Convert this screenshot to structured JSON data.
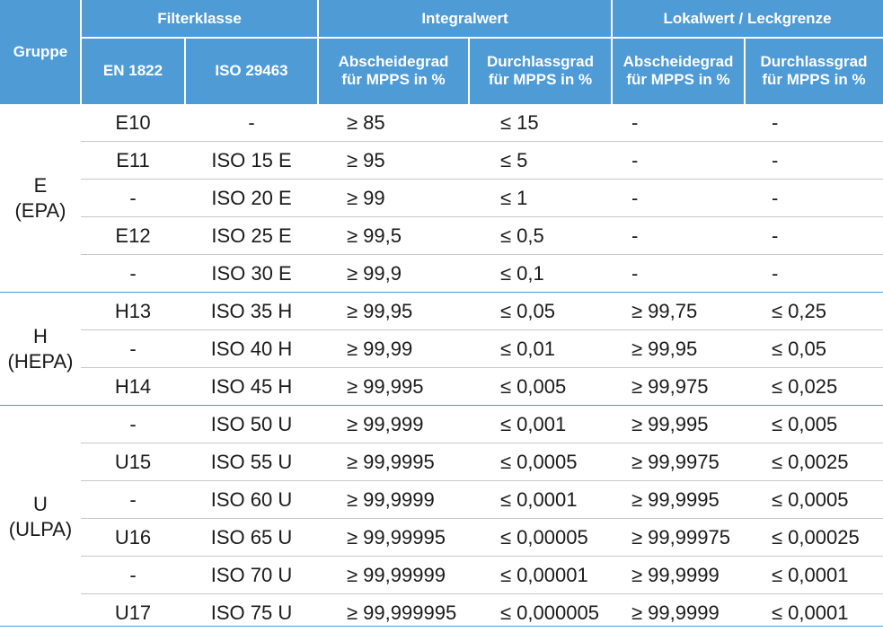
{
  "header": {
    "gruppe": "Gruppe",
    "filterklasse": "Filterklasse",
    "integralwert": "Integralwert",
    "lokalwert": "Lokalwert / Leckgrenze",
    "en1822": "EN 1822",
    "iso29463": "ISO 29463",
    "int_abscheide": "Abscheidegrad\nfür MPPS in %",
    "int_durchlass": "Durchlassgrad\nfür MPPS in %",
    "lok_abscheide": "Abscheidegrad\nfür MPPS in %",
    "lok_durchlass": "Durchlassgrad\nfür MPPS in %"
  },
  "groups": [
    {
      "line1": "E",
      "line2": "(EPA)"
    },
    {
      "line1": "H",
      "line2": "(HEPA)"
    },
    {
      "line1": "U",
      "line2": "(ULPA)"
    }
  ],
  "rows": [
    [
      "E10",
      "-",
      "≥ 85",
      "≤ 15",
      "-",
      "-"
    ],
    [
      "E11",
      "ISO 15 E",
      "≥ 95",
      "≤ 5",
      "-",
      "-"
    ],
    [
      "-",
      "ISO 20 E",
      "≥ 99",
      "≤ 1",
      "-",
      "-"
    ],
    [
      "E12",
      "ISO 25 E",
      "≥ 99,5",
      "≤ 0,5",
      "-",
      "-"
    ],
    [
      "-",
      "ISO 30 E",
      "≥ 99,9",
      "≤ 0,1",
      "-",
      "-"
    ],
    [
      "H13",
      "ISO 35 H",
      "≥ 99,95",
      "≤ 0,05",
      "≥ 99,75",
      "≤ 0,25"
    ],
    [
      "-",
      "ISO 40 H",
      "≥ 99,99",
      "≤ 0,01",
      "≥ 99,95",
      "≤ 0,05"
    ],
    [
      "H14",
      "ISO 45 H",
      "≥ 99,995",
      "≤ 0,005",
      "≥ 99,975",
      "≤ 0,025"
    ],
    [
      "-",
      "ISO 50 U",
      "≥ 99,999",
      "≤ 0,001",
      "≥ 99,995",
      "≤ 0,005"
    ],
    [
      "U15",
      "ISO 55 U",
      "≥ 99,9995",
      "≤ 0,0005",
      "≥ 99,9975",
      "≤ 0,0025"
    ],
    [
      "-",
      "ISO 60 U",
      "≥ 99,9999",
      "≤ 0,0001",
      "≥ 99,9995",
      "≤ 0,0005"
    ],
    [
      "U16",
      "ISO 65 U",
      "≥ 99,99995",
      "≤ 0,00005",
      "≥ 99,99975",
      "≤ 0,00025"
    ],
    [
      "-",
      "ISO 70 U",
      "≥ 99,99999",
      "≤ 0,00001",
      "≥ 99,9999",
      "≤ 0,0001"
    ],
    [
      "U17",
      "ISO 75 U",
      "≥ 99,999995",
      "≤ 0,000005",
      "≥ 99,9999",
      "≤ 0,0001"
    ]
  ],
  "colors": {
    "header_bg": "#4e9bd6",
    "header_text": "#ffffff",
    "row_line": "#c8c8c8"
  }
}
